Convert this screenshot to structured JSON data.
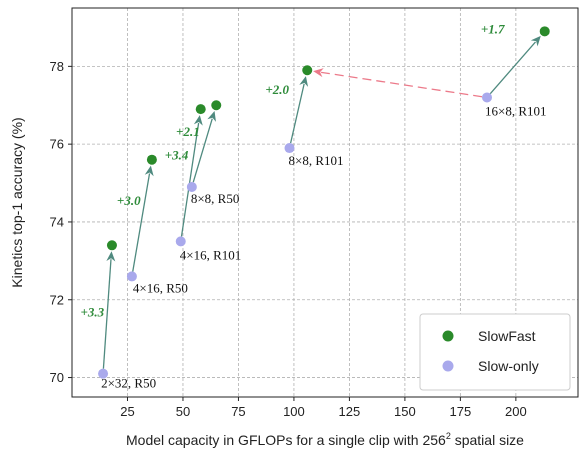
{
  "chart_data": {
    "type": "scatter",
    "xlabel": "Model capacity in GFLOPs for a single clip with 256",
    "xlabel_sup": "2",
    "xlabel_tail": " spatial size",
    "ylabel": "Kinetics top-1 accuracy (%)",
    "xlim": [
      0,
      228
    ],
    "ylim": [
      69.5,
      79.5
    ],
    "x_ticks": [
      25,
      50,
      75,
      100,
      125,
      150,
      175,
      200
    ],
    "y_ticks": [
      70,
      72,
      74,
      76,
      78
    ],
    "grid": true,
    "legend_position": "bottom-right",
    "colors": {
      "slowfast": "#2a8a2a",
      "slow_only": "#a9a9ec",
      "arrow": "#4f8a7f",
      "dashed_arrow": "#ec7a8a"
    },
    "series": [
      {
        "name": "SlowFast",
        "points": [
          {
            "x": 18,
            "y": 73.4
          },
          {
            "x": 36,
            "y": 75.6
          },
          {
            "x": 58,
            "y": 76.9
          },
          {
            "x": 65,
            "y": 77.0
          },
          {
            "x": 106,
            "y": 77.9
          },
          {
            "x": 213,
            "y": 78.9
          }
        ]
      },
      {
        "name": "Slow-only",
        "points": [
          {
            "x": 14,
            "y": 70.1,
            "label": "2×32, R50"
          },
          {
            "x": 27,
            "y": 72.6,
            "label": "4×16, R50"
          },
          {
            "x": 49,
            "y": 73.5,
            "label": "4×16, R101"
          },
          {
            "x": 54,
            "y": 74.9,
            "label": "8×8, R50"
          },
          {
            "x": 98,
            "y": 75.9,
            "label": "8×8, R101"
          },
          {
            "x": 187,
            "y": 77.2,
            "label": "16×8, R101"
          }
        ]
      }
    ],
    "arrows": [
      {
        "from": 0,
        "to": 0,
        "label": "+3.3"
      },
      {
        "from": 1,
        "to": 1,
        "label": "+3.0"
      },
      {
        "from": 2,
        "to": 2,
        "label": "+3.4"
      },
      {
        "from": 3,
        "to": 3,
        "label": "+2.1"
      },
      {
        "from": 4,
        "to": 4,
        "label": "+2.0"
      },
      {
        "from": 5,
        "to": 5,
        "label": "+1.7"
      }
    ],
    "dashed_arrow": {
      "from_series": "Slow-only",
      "from": 5,
      "to_series": "SlowFast",
      "to": 4
    }
  }
}
